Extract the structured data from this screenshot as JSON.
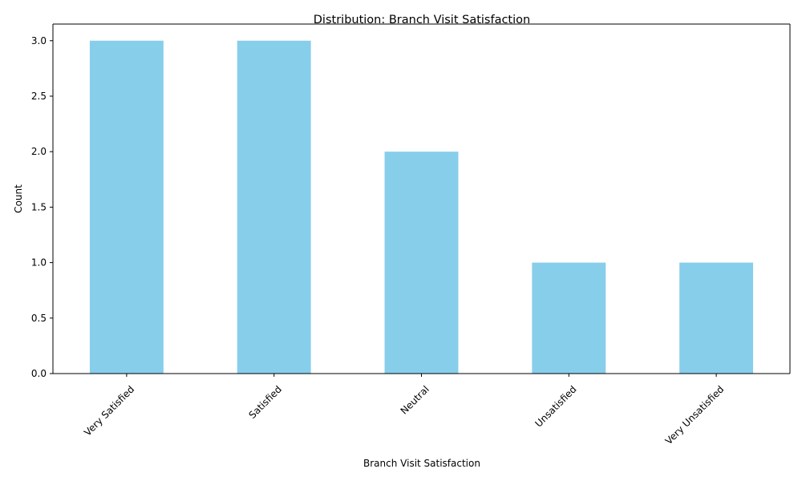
{
  "chart_data": {
    "type": "bar",
    "title": "Distribution: Branch Visit Satisfaction",
    "xlabel": "Branch Visit Satisfaction",
    "ylabel": "Count",
    "categories": [
      "Very Satisfied",
      "Satisfied",
      "Neutral",
      "Unsatisfied",
      "Very Unsatisfied"
    ],
    "values": [
      3,
      3,
      2,
      1,
      1
    ],
    "ylim": [
      0,
      3.15
    ],
    "yticks": [
      0,
      0.5,
      1.0,
      1.5,
      2.0,
      2.5,
      3.0
    ],
    "ytick_labels": [
      "0.0",
      "0.5",
      "1.0",
      "1.5",
      "2.0",
      "2.5",
      "3.0"
    ],
    "bar_color": "#87CEEB",
    "grid": false,
    "legend": false
  }
}
